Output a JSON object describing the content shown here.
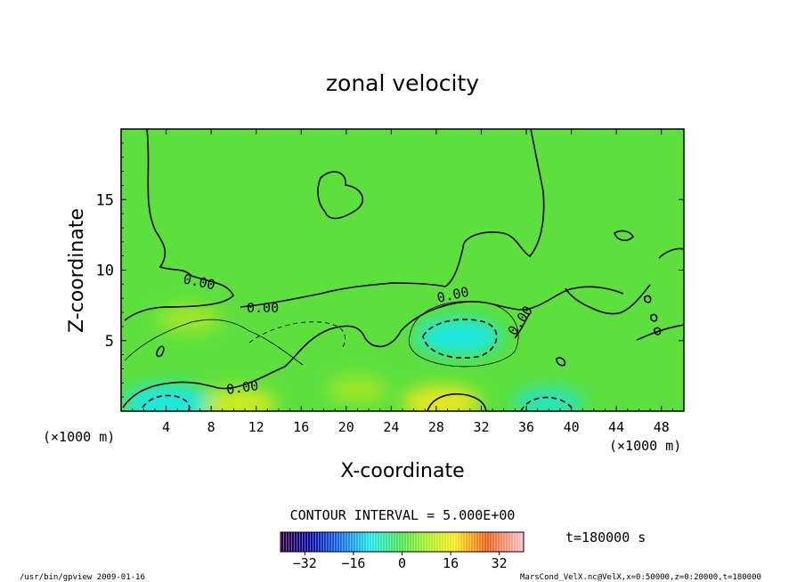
{
  "chart_data": {
    "type": "heatmap",
    "title": "zonal velocity",
    "xlabel": "X-coordinate",
    "ylabel": "Z-coordinate",
    "x_unit": "(×1000 m)",
    "z_unit": "(×1000 m)",
    "xlim": [
      0,
      50
    ],
    "ylim": [
      0,
      20
    ],
    "x_ticks": [
      4,
      8,
      12,
      16,
      20,
      24,
      28,
      32,
      36,
      40,
      44,
      48
    ],
    "y_ticks": [
      5,
      10,
      15
    ],
    "contour_interval_text": "CONTOUR INTERVAL = 5.000E+00",
    "time_text": "t=180000 s",
    "contour_label": "0.00",
    "colorbar": {
      "range": [
        -40,
        40
      ],
      "ticks": [
        -32,
        -16,
        0,
        16,
        32
      ]
    },
    "features": [
      {
        "x": 30,
        "z": 5.3,
        "value": -12,
        "note": "negative core"
      },
      {
        "x": 28.5,
        "z": 0.6,
        "value": 10,
        "note": "positive core"
      },
      {
        "x": 10.5,
        "z": 0.5,
        "value": 9,
        "note": "positive core"
      },
      {
        "x": 4,
        "z": 0.6,
        "value": -12,
        "note": "negative core"
      },
      {
        "x": 38,
        "z": 0.6,
        "value": -8,
        "note": "negative core"
      },
      {
        "x": 6,
        "z": 6.5,
        "value": 6,
        "note": "positive band"
      },
      {
        "x": 21,
        "z": 1.5,
        "value": 5,
        "note": "positive band"
      }
    ],
    "footer_left": "/usr/bin/gpview   2009-01-16",
    "footer_right": "MarsCond_VelX.nc@VelX,x=0:50000,z=0:20000,t=180000"
  }
}
